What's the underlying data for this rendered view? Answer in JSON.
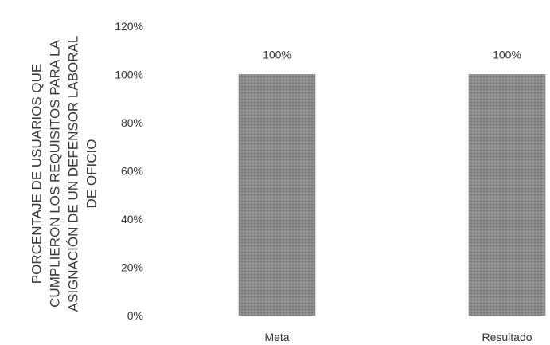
{
  "chart_data": {
    "type": "bar",
    "title": "",
    "xlabel": "",
    "ylabel": "PORCENTAJE DE USUARIOS QUE CUMPLIERON LOS REQUISITOS PARA LA ASIGNACIÓN DE UN DEFENSOR LABORAL DE OFICIO",
    "ylabel_lines": [
      "PORCENTAJE DE USUARIOS QUE",
      "CUMPLIERON LOS REQUISITOS PARA LA",
      "ASIGNACIÓN DE UN DEFENSOR LABORAL",
      "DE OFICIO"
    ],
    "categories": [
      "Meta",
      "Resultado"
    ],
    "values": [
      100,
      100
    ],
    "data_labels": [
      "100%",
      "100%"
    ],
    "ylim": [
      0,
      120
    ],
    "yticks": [
      0,
      20,
      40,
      60,
      80,
      100,
      120
    ],
    "ytick_labels": [
      "0%",
      "20%",
      "40%",
      "60%",
      "80%",
      "100%",
      "120%"
    ],
    "grid": false,
    "bar_color": "#8a8a8a"
  }
}
